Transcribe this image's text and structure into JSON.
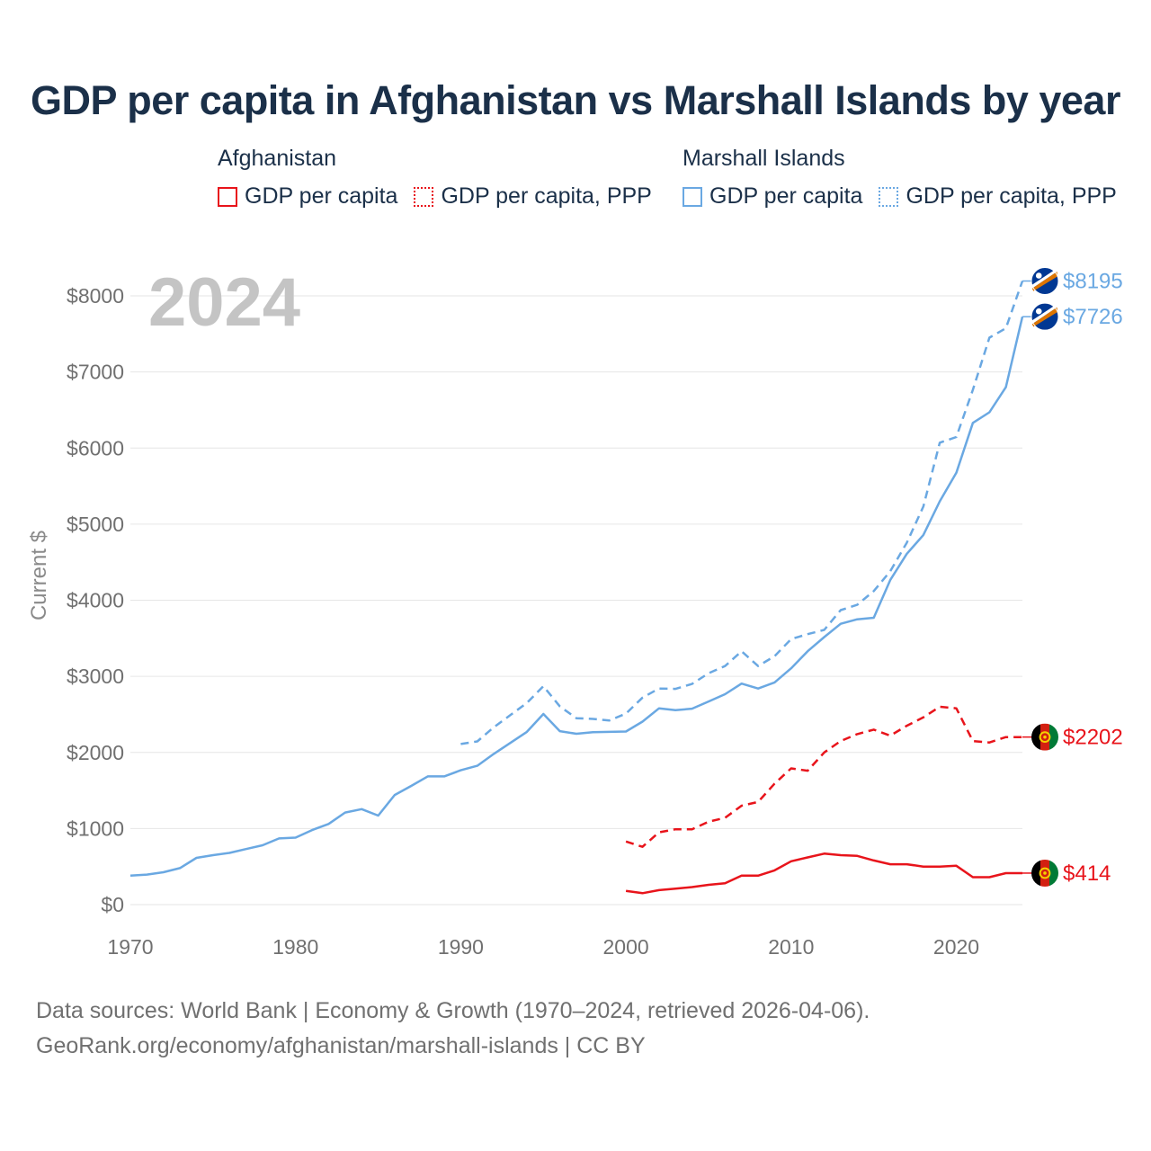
{
  "title": "GDP per capita in Afghanistan vs Marshall Islands by year",
  "legend": {
    "groups": [
      {
        "name": "Afghanistan",
        "color": "#e8141b",
        "items": [
          {
            "label": "GDP per capita",
            "style": "solid"
          },
          {
            "label": "GDP per capita, PPP",
            "style": "dotted"
          }
        ]
      },
      {
        "name": "Marshall Islands",
        "color": "#6aa8e2",
        "items": [
          {
            "label": "GDP per capita",
            "style": "solid"
          },
          {
            "label": "GDP per capita, PPP",
            "style": "dotted"
          }
        ]
      }
    ]
  },
  "footer": {
    "line1": "Data sources: World Bank | Economy & Growth (1970–2024, retrieved 2026-04-06).",
    "line2": "GeoRank.org/economy/afghanistan/marshall-islands | CC BY"
  },
  "chart_data": {
    "type": "line",
    "year_label": "2024",
    "ylabel": "Current $",
    "xlim": [
      1970,
      2024
    ],
    "ylim": [
      0,
      8000
    ],
    "xticks": [
      1970,
      1980,
      1990,
      2000,
      2010,
      2020
    ],
    "yticks": [
      0,
      1000,
      2000,
      3000,
      4000,
      5000,
      6000,
      7000,
      8000
    ],
    "ytick_labels": [
      "$0",
      "$1000",
      "$2000",
      "$3000",
      "$4000",
      "$5000",
      "$6000",
      "$7000",
      "$8000"
    ],
    "series": [
      {
        "name": "Marshall Islands GDP per capita",
        "country": "Marshall Islands",
        "color": "#6aa8e2",
        "dash": "solid",
        "end_label": "$7726",
        "x": [
          1970,
          1971,
          1972,
          1973,
          1974,
          1975,
          1976,
          1977,
          1978,
          1979,
          1980,
          1981,
          1982,
          1983,
          1984,
          1985,
          1986,
          1987,
          1988,
          1989,
          1990,
          1991,
          1992,
          1993,
          1994,
          1995,
          1996,
          1997,
          1998,
          1999,
          2000,
          2001,
          2002,
          2003,
          2004,
          2005,
          2006,
          2007,
          2008,
          2009,
          2010,
          2011,
          2012,
          2013,
          2014,
          2015,
          2016,
          2017,
          2018,
          2019,
          2020,
          2021,
          2022,
          2023,
          2024
        ],
        "values": [
          380,
          395,
          425,
          480,
          615,
          650,
          680,
          730,
          780,
          870,
          880,
          980,
          1060,
          1210,
          1255,
          1170,
          1440,
          1560,
          1685,
          1685,
          1765,
          1825,
          1980,
          2125,
          2270,
          2505,
          2280,
          2245,
          2265,
          2270,
          2275,
          2405,
          2580,
          2555,
          2575,
          2670,
          2765,
          2905,
          2840,
          2920,
          3105,
          3330,
          3515,
          3690,
          3750,
          3770,
          4265,
          4610,
          4855,
          5300,
          5675,
          6330,
          6470,
          6800,
          7726
        ]
      },
      {
        "name": "Marshall Islands GDP per capita, PPP",
        "country": "Marshall Islands",
        "color": "#6aa8e2",
        "dash": "dashed",
        "end_label": "$8195",
        "x": [
          1990,
          1991,
          1992,
          1993,
          1994,
          1995,
          1996,
          1997,
          1998,
          1999,
          2000,
          2001,
          2002,
          2003,
          2004,
          2005,
          2006,
          2007,
          2008,
          2009,
          2010,
          2011,
          2012,
          2013,
          2014,
          2015,
          2016,
          2017,
          2018,
          2019,
          2020,
          2021,
          2022,
          2023,
          2024
        ],
        "values": [
          2110,
          2145,
          2330,
          2490,
          2650,
          2870,
          2605,
          2450,
          2440,
          2420,
          2510,
          2720,
          2840,
          2835,
          2900,
          3040,
          3135,
          3330,
          3135,
          3265,
          3490,
          3555,
          3610,
          3870,
          3940,
          4120,
          4380,
          4755,
          5230,
          6070,
          6145,
          6765,
          7450,
          7575,
          8195
        ]
      },
      {
        "name": "Afghanistan GDP per capita",
        "country": "Afghanistan",
        "color": "#e8141b",
        "dash": "solid",
        "end_label": "$414",
        "x": [
          2000,
          2001,
          2002,
          2003,
          2004,
          2005,
          2006,
          2007,
          2008,
          2009,
          2010,
          2011,
          2012,
          2013,
          2014,
          2015,
          2016,
          2017,
          2018,
          2019,
          2020,
          2021,
          2022,
          2023,
          2024
        ],
        "values": [
          180,
          150,
          190,
          210,
          230,
          260,
          280,
          380,
          380,
          450,
          570,
          620,
          670,
          650,
          640,
          580,
          530,
          530,
          500,
          500,
          510,
          360,
          360,
          414,
          414
        ]
      },
      {
        "name": "Afghanistan GDP per capita, PPP",
        "country": "Afghanistan",
        "color": "#e8141b",
        "dash": "dashed",
        "end_label": "$2202",
        "x": [
          2000,
          2001,
          2002,
          2003,
          2004,
          2005,
          2006,
          2007,
          2008,
          2009,
          2010,
          2011,
          2012,
          2013,
          2014,
          2015,
          2016,
          2017,
          2018,
          2019,
          2020,
          2021,
          2022,
          2023,
          2024
        ],
        "values": [
          830,
          760,
          950,
          990,
          990,
          1090,
          1140,
          1300,
          1350,
          1590,
          1790,
          1760,
          2000,
          2150,
          2240,
          2300,
          2220,
          2350,
          2460,
          2600,
          2580,
          2150,
          2130,
          2202,
          2202
        ]
      }
    ]
  }
}
